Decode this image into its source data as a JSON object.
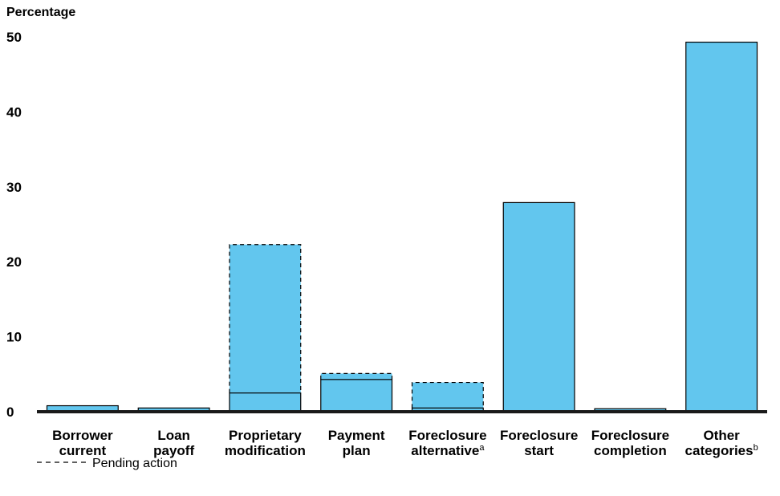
{
  "chart_data": {
    "type": "bar",
    "ylabel": "Percentage",
    "ylim": [
      0,
      50
    ],
    "yticks": [
      "0",
      "10",
      "20",
      "30",
      "40",
      "50"
    ],
    "grid": false,
    "categories": [
      {
        "lines": [
          "Borrower",
          "current"
        ],
        "sup": ""
      },
      {
        "lines": [
          "Loan",
          "payoff"
        ],
        "sup": ""
      },
      {
        "lines": [
          "Proprietary",
          "modification"
        ],
        "sup": ""
      },
      {
        "lines": [
          "Payment",
          "plan"
        ],
        "sup": ""
      },
      {
        "lines": [
          "Foreclosure",
          "alternative"
        ],
        "sup": "a"
      },
      {
        "lines": [
          "Foreclosure",
          "start"
        ],
        "sup": ""
      },
      {
        "lines": [
          "Foreclosure",
          "completion"
        ],
        "sup": ""
      },
      {
        "lines": [
          "Other",
          "categories"
        ],
        "sup": "b"
      }
    ],
    "series": [
      {
        "values": [
          0.8,
          0.5,
          2.5,
          4.3,
          0.5,
          27.9,
          0.4,
          49.3
        ]
      },
      {
        "name": "Pending action",
        "values": [
          0,
          0,
          19.8,
          0.8,
          3.4,
          0,
          0,
          0
        ]
      }
    ],
    "bar_color": "#62c6ee",
    "legend": {
      "label": "Pending action",
      "position": "bottom-left",
      "style": "dashed"
    }
  }
}
